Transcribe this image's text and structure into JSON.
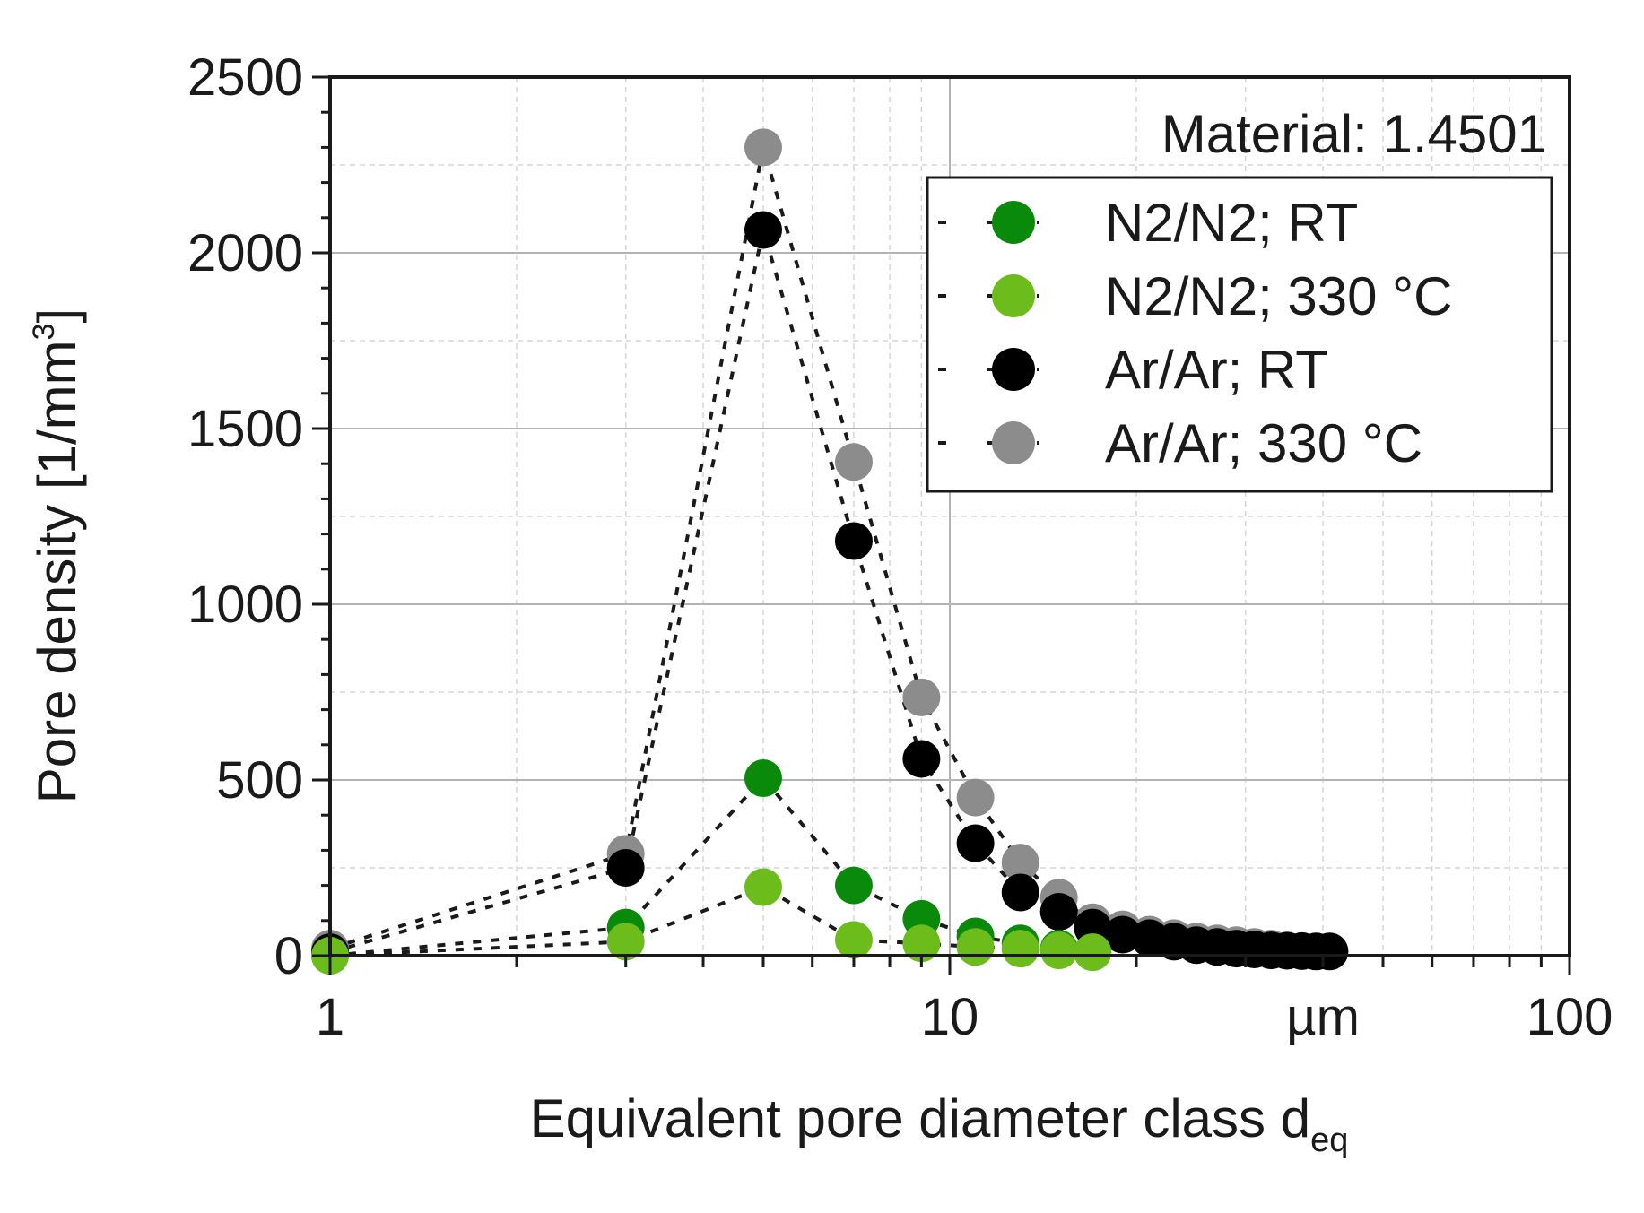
{
  "chart_data": {
    "type": "scatter",
    "title": "",
    "annotation": "Material: 1.4501",
    "xlabel": "Equivalent pore diameter class d",
    "xlabel_subscript": "eq",
    "ylabel": "Pore density [1/mm",
    "ylabel_superscript": "3",
    "ylabel_close": "]",
    "xscale": "log",
    "xlim": [
      1,
      100
    ],
    "ylim": [
      0,
      2500
    ],
    "x_ticks": [
      {
        "value": 1,
        "label": "1"
      },
      {
        "value": 10,
        "label": "10"
      },
      {
        "value": 40,
        "label": "µm"
      },
      {
        "value": 100,
        "label": "100"
      }
    ],
    "y_ticks": [
      0,
      500,
      1000,
      1500,
      2000,
      2500
    ],
    "y_tick_labels": [
      "0",
      "500",
      "1000",
      "1500",
      "2000",
      "2500"
    ],
    "grid": true,
    "legend_position": "top-right",
    "series": [
      {
        "name": "N2/N2; RT",
        "color": "#0a8a0a",
        "x": [
          1,
          3,
          5,
          7,
          9,
          11,
          13,
          15,
          17
        ],
        "y": [
          0,
          80,
          505,
          200,
          105,
          55,
          35,
          20,
          10
        ]
      },
      {
        "name": "N2/N2; 330 °C",
        "color": "#6cbc1c",
        "x": [
          1,
          3,
          5,
          7,
          9,
          11,
          13,
          15,
          17
        ],
        "y": [
          0,
          40,
          195,
          45,
          35,
          25,
          20,
          15,
          10
        ]
      },
      {
        "name": "Ar/Ar; RT",
        "color": "#000000",
        "x": [
          1,
          3,
          5,
          7,
          9,
          11,
          13,
          15,
          17,
          19,
          21,
          23,
          25,
          27,
          29,
          31,
          33,
          35,
          37,
          39,
          41
        ],
        "y": [
          10,
          250,
          2065,
          1180,
          560,
          320,
          180,
          125,
          80,
          60,
          50,
          40,
          30,
          25,
          20,
          18,
          15,
          14,
          13,
          12,
          12
        ]
      },
      {
        "name": "Ar/Ar; 330 °C",
        "color": "#8c8c8c",
        "x": [
          1,
          3,
          5,
          7,
          9,
          11,
          13,
          15,
          17,
          19,
          21,
          23,
          25,
          27,
          29,
          31,
          33,
          35
        ],
        "y": [
          20,
          290,
          2300,
          1405,
          735,
          450,
          265,
          165,
          95,
          75,
          60,
          50,
          40,
          35,
          30,
          25,
          20,
          15
        ]
      }
    ]
  }
}
